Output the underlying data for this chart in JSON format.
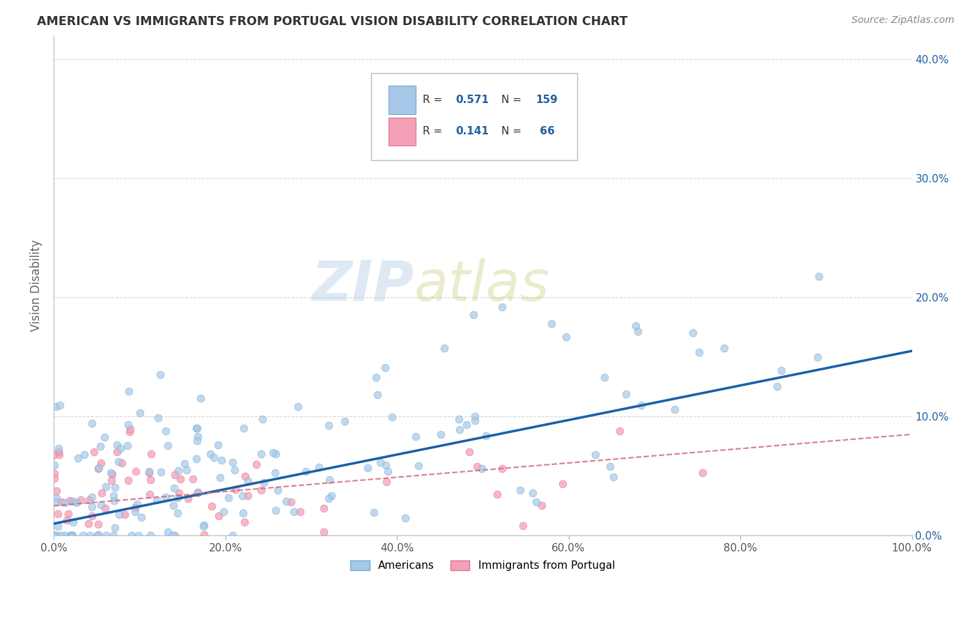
{
  "title": "AMERICAN VS IMMIGRANTS FROM PORTUGAL VISION DISABILITY CORRELATION CHART",
  "source": "Source: ZipAtlas.com",
  "xlabel_ticks": [
    "0.0%",
    "20.0%",
    "40.0%",
    "60.0%",
    "80.0%",
    "100.0%"
  ],
  "ylabel_ticks": [
    "0.0%",
    "10.0%",
    "20.0%",
    "30.0%",
    "40.0%"
  ],
  "ylabel": "Vision Disability",
  "blue_scatter_color": "#a8c8e8",
  "blue_edge_color": "#6aaad4",
  "pink_scatter_color": "#f4a0b8",
  "pink_edge_color": "#e07090",
  "trend_blue": "#1a5fa8",
  "trend_pink": "#d06878",
  "watermark_text": "ZIPatlas",
  "watermark_color": "#d0dff0",
  "background_color": "#ffffff",
  "grid_color": "#cccccc",
  "title_color": "#333333",
  "axis_label_color": "#666666",
  "tick_color": "#2060a0",
  "xlim": [
    0.0,
    1.0
  ],
  "ylim": [
    0.0,
    0.42
  ],
  "ytick_vals": [
    0.0,
    0.1,
    0.2,
    0.3,
    0.4
  ],
  "xtick_vals": [
    0.0,
    0.2,
    0.4,
    0.6,
    0.8,
    1.0
  ],
  "R_blue": 0.571,
  "N_blue": 159,
  "R_pink": 0.141,
  "N_pink": 66,
  "blue_trend_start_y": 0.01,
  "blue_trend_end_y": 0.155,
  "pink_trend_start_y": 0.025,
  "pink_trend_end_y": 0.085
}
